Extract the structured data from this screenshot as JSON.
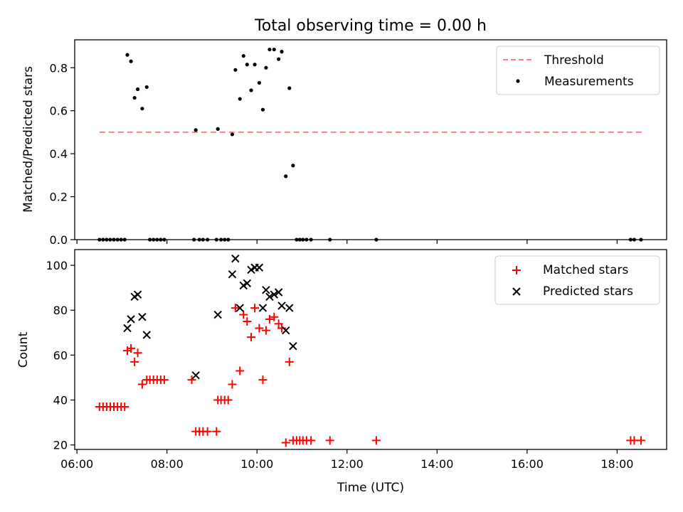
{
  "figure_title": "Total observing time = 0.00 h",
  "shared_x": {
    "label": "Time (UTC)",
    "range_hours": [
      5.95,
      19.1
    ],
    "ticks": [
      6,
      8,
      10,
      12,
      14,
      16,
      18
    ],
    "tick_labels": [
      "06:00",
      "08:00",
      "10:00",
      "12:00",
      "14:00",
      "16:00",
      "18:00"
    ]
  },
  "chart_data": [
    {
      "type": "scatter",
      "panel": "top",
      "ylabel": "Matched/Predicted stars",
      "ylim": [
        0,
        0.93
      ],
      "yticks": [
        0,
        0.2,
        0.4,
        0.6,
        0.8
      ],
      "ytick_labels": [
        "0.0",
        "0.2",
        "0.4",
        "0.6",
        "0.8"
      ],
      "legend_position": "top-right",
      "series": [
        {
          "name": "Threshold",
          "kind": "dashed-line",
          "color": "#ff8080",
          "x": [
            6.5,
            18.55
          ],
          "y": [
            0.5,
            0.5
          ]
        },
        {
          "name": "Measurements",
          "kind": "dot",
          "color": "#000000",
          "x": [
            6.5,
            6.58,
            6.66,
            6.74,
            6.82,
            6.9,
            6.98,
            7.06,
            7.12,
            7.2,
            7.28,
            7.35,
            7.45,
            7.55,
            7.62,
            7.7,
            7.78,
            7.86,
            7.94,
            8.6,
            8.64,
            8.72,
            8.8,
            8.9,
            9.1,
            9.13,
            9.2,
            9.28,
            9.36,
            9.45,
            9.52,
            9.62,
            9.7,
            9.78,
            9.87,
            9.95,
            10.05,
            10.13,
            10.2,
            10.28,
            10.38,
            10.48,
            10.55,
            10.64,
            10.72,
            10.8,
            10.88,
            10.95,
            11.02,
            11.1,
            11.2,
            11.62,
            12.65,
            18.3,
            18.38,
            18.53
          ],
          "y": [
            0,
            0,
            0,
            0,
            0,
            0,
            0,
            0,
            0.86,
            0.83,
            0.66,
            0.7,
            0.61,
            0.71,
            0,
            0,
            0,
            0,
            0,
            0,
            0.51,
            0,
            0,
            0,
            0,
            0.515,
            0,
            0,
            0,
            0.49,
            0.79,
            0.655,
            0.855,
            0.815,
            0.695,
            0.815,
            0.73,
            0.605,
            0.8,
            0.885,
            0.885,
            0.84,
            0.875,
            0.295,
            0.705,
            0.345,
            0,
            0,
            0,
            0,
            0,
            0,
            0,
            0,
            0,
            0
          ]
        }
      ]
    },
    {
      "type": "scatter",
      "panel": "bottom",
      "xlabel": "Time (UTC)",
      "ylabel": "Count",
      "ylim": [
        18,
        107
      ],
      "yticks": [
        20,
        40,
        60,
        80,
        100
      ],
      "ytick_labels": [
        "20",
        "40",
        "60",
        "80",
        "100"
      ],
      "legend_position": "top-right",
      "series": [
        {
          "name": "Matched stars",
          "kind": "plus",
          "color": "#ff0000",
          "x": [
            6.5,
            6.58,
            6.66,
            6.74,
            6.82,
            6.9,
            6.98,
            7.06,
            7.12,
            7.2,
            7.28,
            7.35,
            7.45,
            7.55,
            7.62,
            7.7,
            7.78,
            7.86,
            7.94,
            8.55,
            8.64,
            8.72,
            8.8,
            8.9,
            9.1,
            9.13,
            9.2,
            9.28,
            9.36,
            9.45,
            9.52,
            9.62,
            9.7,
            9.78,
            9.87,
            9.95,
            10.05,
            10.13,
            10.2,
            10.28,
            10.38,
            10.48,
            10.55,
            10.64,
            10.72,
            10.8,
            10.88,
            10.95,
            11.02,
            11.1,
            11.2,
            11.62,
            12.65,
            18.3,
            18.38,
            18.53
          ],
          "y": [
            37,
            37,
            37,
            37,
            37,
            37,
            37,
            37,
            62,
            63,
            57,
            61,
            47,
            49,
            49,
            49,
            49,
            49,
            49,
            49,
            26,
            26,
            26,
            26,
            26,
            40,
            40,
            40,
            40,
            47,
            81,
            53,
            78,
            75,
            68,
            81,
            72,
            49,
            71,
            76,
            77,
            74,
            72,
            21,
            57,
            22,
            22,
            22,
            22,
            22,
            22,
            22,
            22,
            22,
            22,
            22
          ]
        },
        {
          "name": "Predicted stars",
          "kind": "cross",
          "color": "#000000",
          "x": [
            7.12,
            7.2,
            7.28,
            7.35,
            7.45,
            7.55,
            8.64,
            9.13,
            9.45,
            9.52,
            9.62,
            9.7,
            9.78,
            9.87,
            9.95,
            10.05,
            10.13,
            10.2,
            10.28,
            10.38,
            10.48,
            10.55,
            10.64,
            10.72,
            10.8
          ],
          "y": [
            72,
            76,
            86,
            87,
            77,
            69,
            51,
            78,
            96,
            103,
            81,
            91,
            92,
            98,
            99,
            99,
            81,
            89,
            86,
            87,
            88,
            82,
            71,
            81,
            64
          ]
        }
      ]
    }
  ]
}
